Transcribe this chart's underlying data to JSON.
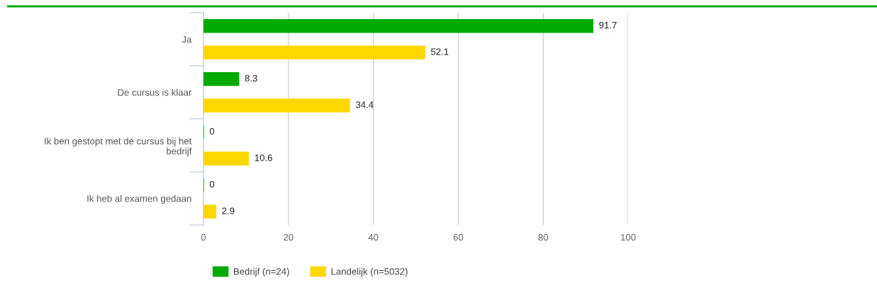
{
  "chart_data": {
    "type": "bar",
    "orientation": "horizontal",
    "categories": [
      "Ja",
      "De cursus is klaar",
      "Ik ben gestopt met de cursus bij het\nbedrijf",
      "Ik heb al examen gedaan"
    ],
    "series": [
      {
        "name": "Bedrijf (n=24)",
        "color": "#00aa00",
        "values": [
          91.7,
          8.3,
          0,
          0
        ]
      },
      {
        "name": "Landelijk (n=5032)",
        "color": "#ffd700",
        "values": [
          52.1,
          34.4,
          10.6,
          2.9
        ]
      }
    ],
    "xlim": [
      0,
      100
    ],
    "xticks": [
      0,
      20,
      40,
      60,
      80,
      100
    ],
    "grid": "x",
    "legend": "bottom",
    "data_labels": true
  }
}
